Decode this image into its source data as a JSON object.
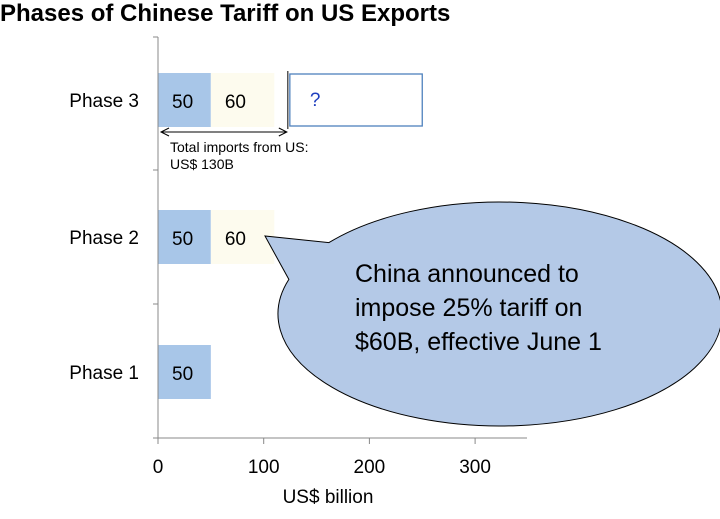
{
  "chart_data": {
    "type": "bar",
    "orientation": "horizontal",
    "stacked": true,
    "title": "Phases of Chinese Tariff on US Exports",
    "xlabel": "US$ billion",
    "ylabel": "",
    "xlim": [
      0,
      340
    ],
    "xticks": [
      0,
      100,
      200,
      300
    ],
    "grid": false,
    "categories": [
      "Phase 3",
      "Phase 2",
      "Phase 1"
    ],
    "segments": [
      {
        "category": "Phase 3",
        "values": [
          50,
          60
        ],
        "labels": [
          "50",
          "60"
        ]
      },
      {
        "category": "Phase 2",
        "values": [
          50,
          60
        ],
        "labels": [
          "50",
          "60"
        ]
      },
      {
        "category": "Phase 1",
        "values": [
          50
        ],
        "labels": [
          "50"
        ]
      }
    ],
    "unknown_segment": {
      "category": "Phase 3",
      "start": 120,
      "end": 250,
      "label": "?"
    },
    "annotations": {
      "total_imports_line1": "Total imports from US:",
      "total_imports_line2": "US$ 130B",
      "total_imports_span": [
        0,
        120
      ],
      "callout_lines": [
        "China announced to",
        "impose 25% tariff on",
        "$60B, effective June 1"
      ]
    },
    "colors": {
      "segment1": "#a8c6e8",
      "segment2": "#fdfbee",
      "unknown_border": "#4f81bd",
      "callout_fill": "#b4c9e7",
      "callout_stroke": "#000000"
    }
  }
}
